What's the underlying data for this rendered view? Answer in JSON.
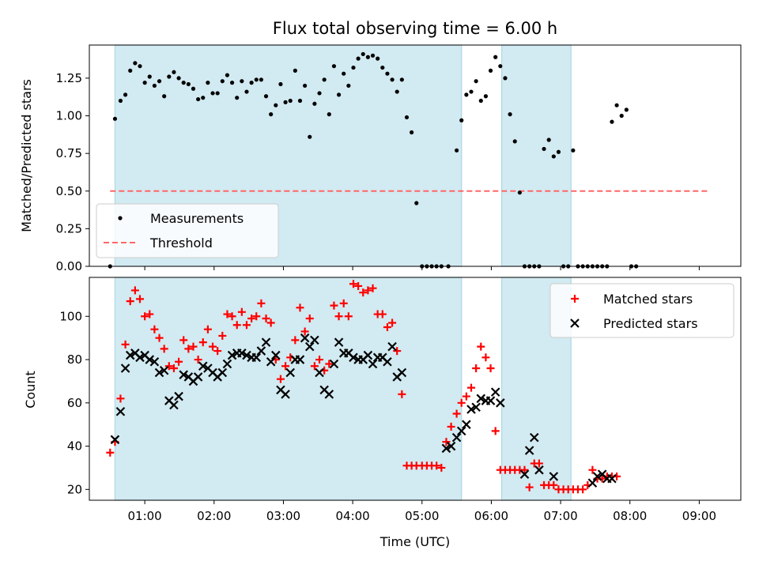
{
  "chart_data": {
    "type": "scatter",
    "title": "Flux total observing time = 6.00 h",
    "xlabel": "Time (UTC)",
    "xticks": [
      "01:00",
      "02:00",
      "03:00",
      "04:00",
      "05:00",
      "06:00",
      "07:00",
      "08:00",
      "09:00"
    ],
    "xlim_hours": [
      0.2,
      9.6
    ],
    "shaded_intervals_hours": [
      [
        0.57,
        5.57
      ],
      [
        6.15,
        7.15
      ]
    ],
    "colors": {
      "shade": "#add8e6",
      "measurements": "#000000",
      "threshold": "#ff6666",
      "matched": "#ff0000",
      "predicted": "#000000"
    },
    "panels": [
      {
        "id": "ratio",
        "ylabel": "Matched/Predicted stars",
        "ylim": [
          0,
          1.47
        ],
        "yticks": [
          "0.00",
          "0.25",
          "0.50",
          "0.75",
          "1.00",
          "1.25"
        ],
        "legend": {
          "position": "lower-left",
          "entries": [
            "Measurements",
            "Threshold"
          ]
        },
        "threshold": {
          "value": 0.5,
          "x": [
            0.5,
            9.15
          ]
        },
        "measurements": [
          [
            0.5,
            0.0
          ],
          [
            0.57,
            0.98
          ],
          [
            0.65,
            1.1
          ],
          [
            0.72,
            1.14
          ],
          [
            0.79,
            1.3
          ],
          [
            0.86,
            1.35
          ],
          [
            0.93,
            1.33
          ],
          [
            1.0,
            1.22
          ],
          [
            1.07,
            1.26
          ],
          [
            1.14,
            1.2
          ],
          [
            1.21,
            1.23
          ],
          [
            1.28,
            1.13
          ],
          [
            1.35,
            1.26
          ],
          [
            1.42,
            1.29
          ],
          [
            1.49,
            1.25
          ],
          [
            1.56,
            1.22
          ],
          [
            1.63,
            1.21
          ],
          [
            1.7,
            1.18
          ],
          [
            1.77,
            1.11
          ],
          [
            1.84,
            1.12
          ],
          [
            1.91,
            1.22
          ],
          [
            1.98,
            1.15
          ],
          [
            2.05,
            1.15
          ],
          [
            2.12,
            1.23
          ],
          [
            2.19,
            1.27
          ],
          [
            2.26,
            1.22
          ],
          [
            2.33,
            1.12
          ],
          [
            2.4,
            1.23
          ],
          [
            2.47,
            1.16
          ],
          [
            2.54,
            1.22
          ],
          [
            2.61,
            1.24
          ],
          [
            2.68,
            1.24
          ],
          [
            2.75,
            1.13
          ],
          [
            2.82,
            1.01
          ],
          [
            2.89,
            1.07
          ],
          [
            2.96,
            1.21
          ],
          [
            3.03,
            1.09
          ],
          [
            3.1,
            1.1
          ],
          [
            3.17,
            1.3
          ],
          [
            3.24,
            1.1
          ],
          [
            3.31,
            1.2
          ],
          [
            3.38,
            0.86
          ],
          [
            3.45,
            1.08
          ],
          [
            3.52,
            1.15
          ],
          [
            3.59,
            1.24
          ],
          [
            3.66,
            1.01
          ],
          [
            3.73,
            1.33
          ],
          [
            3.8,
            1.14
          ],
          [
            3.87,
            1.28
          ],
          [
            3.94,
            1.2
          ],
          [
            4.01,
            1.32
          ],
          [
            4.08,
            1.38
          ],
          [
            4.15,
            1.41
          ],
          [
            4.22,
            1.39
          ],
          [
            4.29,
            1.4
          ],
          [
            4.36,
            1.38
          ],
          [
            4.43,
            1.32
          ],
          [
            4.5,
            1.28
          ],
          [
            4.57,
            1.24
          ],
          [
            4.64,
            1.16
          ],
          [
            4.71,
            1.24
          ],
          [
            4.78,
            0.99
          ],
          [
            4.85,
            0.89
          ],
          [
            4.92,
            0.42
          ],
          [
            5.0,
            0.0
          ],
          [
            5.07,
            0.0
          ],
          [
            5.14,
            0.0
          ],
          [
            5.21,
            0.0
          ],
          [
            5.28,
            0.0
          ],
          [
            5.38,
            0.0
          ],
          [
            5.5,
            0.77
          ],
          [
            5.57,
            0.97
          ],
          [
            5.64,
            1.14
          ],
          [
            5.71,
            1.16
          ],
          [
            5.78,
            1.23
          ],
          [
            5.85,
            1.1
          ],
          [
            5.92,
            1.13
          ],
          [
            5.99,
            1.3
          ],
          [
            6.06,
            1.39
          ],
          [
            6.13,
            1.33
          ],
          [
            6.2,
            1.25
          ],
          [
            6.27,
            1.01
          ],
          [
            6.34,
            0.83
          ],
          [
            6.41,
            0.49
          ],
          [
            6.48,
            0.0
          ],
          [
            6.55,
            0.0
          ],
          [
            6.62,
            0.0
          ],
          [
            6.69,
            0.0
          ],
          [
            6.76,
            0.78
          ],
          [
            6.83,
            0.84
          ],
          [
            6.9,
            0.73
          ],
          [
            6.97,
            0.76
          ],
          [
            7.04,
            0.0
          ],
          [
            7.11,
            0.0
          ],
          [
            7.18,
            0.77
          ],
          [
            7.25,
            0.0
          ],
          [
            7.32,
            0.0
          ],
          [
            7.39,
            0.0
          ],
          [
            7.46,
            0.0
          ],
          [
            7.53,
            0.0
          ],
          [
            7.6,
            0.0
          ],
          [
            7.67,
            0.0
          ],
          [
            7.74,
            0.96
          ],
          [
            7.81,
            1.07
          ],
          [
            7.88,
            1.0
          ],
          [
            7.95,
            1.04
          ],
          [
            8.02,
            0.0
          ],
          [
            8.09,
            0.0
          ]
        ]
      },
      {
        "id": "counts",
        "ylabel": "Count",
        "ylim": [
          15,
          118
        ],
        "yticks": [
          "20",
          "40",
          "60",
          "80",
          "100"
        ],
        "legend": {
          "position": "upper-right",
          "entries": [
            "Matched stars",
            "Predicted stars"
          ]
        },
        "matched": [
          [
            0.5,
            37
          ],
          [
            0.57,
            42
          ],
          [
            0.65,
            62
          ],
          [
            0.72,
            87
          ],
          [
            0.79,
            107
          ],
          [
            0.86,
            112
          ],
          [
            0.93,
            108
          ],
          [
            1.0,
            100
          ],
          [
            1.07,
            101
          ],
          [
            1.14,
            94
          ],
          [
            1.21,
            90
          ],
          [
            1.28,
            85
          ],
          [
            1.35,
            77
          ],
          [
            1.42,
            76
          ],
          [
            1.49,
            79
          ],
          [
            1.56,
            89
          ],
          [
            1.63,
            85
          ],
          [
            1.7,
            86
          ],
          [
            1.77,
            80
          ],
          [
            1.84,
            88
          ],
          [
            1.91,
            94
          ],
          [
            1.98,
            86
          ],
          [
            2.05,
            84
          ],
          [
            2.12,
            91
          ],
          [
            2.19,
            101
          ],
          [
            2.26,
            100
          ],
          [
            2.33,
            96
          ],
          [
            2.4,
            102
          ],
          [
            2.47,
            96
          ],
          [
            2.54,
            99
          ],
          [
            2.61,
            100
          ],
          [
            2.68,
            106
          ],
          [
            2.75,
            99
          ],
          [
            2.82,
            97
          ],
          [
            2.89,
            80
          ],
          [
            2.96,
            71
          ],
          [
            3.03,
            77
          ],
          [
            3.1,
            81
          ],
          [
            3.17,
            89
          ],
          [
            3.24,
            104
          ],
          [
            3.31,
            93
          ],
          [
            3.38,
            99
          ],
          [
            3.45,
            77
          ],
          [
            3.52,
            80
          ],
          [
            3.59,
            75
          ],
          [
            3.66,
            78
          ],
          [
            3.73,
            105
          ],
          [
            3.8,
            100
          ],
          [
            3.87,
            106
          ],
          [
            3.94,
            100
          ],
          [
            4.01,
            115
          ],
          [
            4.08,
            114
          ],
          [
            4.15,
            111
          ],
          [
            4.22,
            112
          ],
          [
            4.29,
            113
          ],
          [
            4.36,
            101
          ],
          [
            4.43,
            101
          ],
          [
            4.5,
            95
          ],
          [
            4.57,
            97
          ],
          [
            4.64,
            84
          ],
          [
            4.71,
            64
          ],
          [
            4.78,
            31
          ],
          [
            4.85,
            31
          ],
          [
            4.92,
            31
          ],
          [
            5.0,
            31
          ],
          [
            5.07,
            31
          ],
          [
            5.14,
            31
          ],
          [
            5.21,
            31
          ],
          [
            5.28,
            30
          ],
          [
            5.35,
            42
          ],
          [
            5.42,
            49
          ],
          [
            5.5,
            55
          ],
          [
            5.57,
            60
          ],
          [
            5.64,
            63
          ],
          [
            5.71,
            67
          ],
          [
            5.78,
            76
          ],
          [
            5.85,
            86
          ],
          [
            5.92,
            81
          ],
          [
            5.99,
            76
          ],
          [
            6.06,
            47
          ],
          [
            6.13,
            29
          ],
          [
            6.2,
            29
          ],
          [
            6.27,
            29
          ],
          [
            6.34,
            29
          ],
          [
            6.41,
            29
          ],
          [
            6.48,
            29
          ],
          [
            6.55,
            21
          ],
          [
            6.62,
            32
          ],
          [
            6.69,
            32
          ],
          [
            6.76,
            22
          ],
          [
            6.83,
            22
          ],
          [
            6.9,
            22
          ],
          [
            6.97,
            20
          ],
          [
            7.04,
            20
          ],
          [
            7.11,
            20
          ],
          [
            7.18,
            20
          ],
          [
            7.25,
            20
          ],
          [
            7.32,
            20
          ],
          [
            7.39,
            22
          ],
          [
            7.46,
            29
          ],
          [
            7.53,
            25
          ],
          [
            7.6,
            25
          ],
          [
            7.67,
            26
          ],
          [
            7.74,
            26
          ],
          [
            7.81,
            26
          ]
        ],
        "predicted": [
          [
            0.57,
            43
          ],
          [
            0.65,
            56
          ],
          [
            0.72,
            76
          ],
          [
            0.79,
            82
          ],
          [
            0.86,
            83
          ],
          [
            0.93,
            81
          ],
          [
            1.0,
            82
          ],
          [
            1.07,
            80
          ],
          [
            1.14,
            79
          ],
          [
            1.21,
            74
          ],
          [
            1.28,
            75
          ],
          [
            1.35,
            61
          ],
          [
            1.42,
            59
          ],
          [
            1.49,
            63
          ],
          [
            1.56,
            73
          ],
          [
            1.63,
            72
          ],
          [
            1.7,
            70
          ],
          [
            1.77,
            72
          ],
          [
            1.84,
            77
          ],
          [
            1.91,
            76
          ],
          [
            1.98,
            74
          ],
          [
            2.05,
            72
          ],
          [
            2.12,
            74
          ],
          [
            2.19,
            78
          ],
          [
            2.26,
            82
          ],
          [
            2.33,
            83
          ],
          [
            2.4,
            83
          ],
          [
            2.47,
            82
          ],
          [
            2.54,
            81
          ],
          [
            2.61,
            81
          ],
          [
            2.68,
            84
          ],
          [
            2.75,
            88
          ],
          [
            2.82,
            79
          ],
          [
            2.89,
            82
          ],
          [
            2.96,
            66
          ],
          [
            3.03,
            64
          ],
          [
            3.1,
            74
          ],
          [
            3.17,
            80
          ],
          [
            3.24,
            80
          ],
          [
            3.31,
            90
          ],
          [
            3.38,
            86
          ],
          [
            3.45,
            89
          ],
          [
            3.52,
            74
          ],
          [
            3.59,
            66
          ],
          [
            3.66,
            64
          ],
          [
            3.73,
            78
          ],
          [
            3.8,
            88
          ],
          [
            3.87,
            83
          ],
          [
            3.94,
            83
          ],
          [
            4.01,
            81
          ],
          [
            4.08,
            80
          ],
          [
            4.15,
            80
          ],
          [
            4.22,
            82
          ],
          [
            4.29,
            78
          ],
          [
            4.36,
            81
          ],
          [
            4.43,
            81
          ],
          [
            4.5,
            79
          ],
          [
            4.57,
            86
          ],
          [
            4.64,
            72
          ],
          [
            4.71,
            74
          ],
          [
            5.35,
            39
          ],
          [
            5.42,
            40
          ],
          [
            5.5,
            44
          ],
          [
            5.57,
            47
          ],
          [
            5.64,
            50
          ],
          [
            5.71,
            57
          ],
          [
            5.78,
            58
          ],
          [
            5.85,
            62
          ],
          [
            5.92,
            61
          ],
          [
            5.99,
            61
          ],
          [
            6.06,
            65
          ],
          [
            6.13,
            60
          ],
          [
            6.48,
            27
          ],
          [
            6.55,
            38
          ],
          [
            6.62,
            44
          ],
          [
            6.69,
            29
          ],
          [
            6.9,
            26
          ],
          [
            7.46,
            23
          ],
          [
            7.53,
            26
          ],
          [
            7.6,
            27
          ],
          [
            7.67,
            25
          ],
          [
            7.74,
            25
          ]
        ]
      }
    ]
  }
}
